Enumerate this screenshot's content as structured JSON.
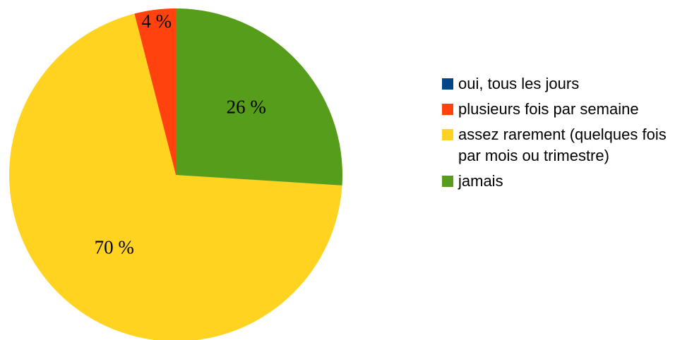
{
  "chart_data": {
    "type": "pie",
    "categories": [
      "oui, tous les jours",
      "plusieurs fois par semaine",
      "assez rarement (quelques fois par mois ou trimestre)",
      "jamais"
    ],
    "values": [
      0,
      4,
      70,
      26
    ],
    "value_labels": [
      null,
      "4 %",
      "70 %",
      "26 %"
    ],
    "colors": [
      "#004586",
      "#ff420e",
      "#ffd320",
      "#579d1c"
    ],
    "legend": "right"
  }
}
